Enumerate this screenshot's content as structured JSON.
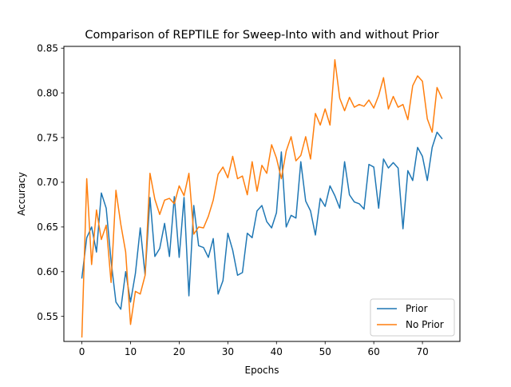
{
  "chart_data": {
    "type": "line",
    "title": "Comparison of REPTILE for Sweep-Into with and without Prior",
    "xlabel": "Epochs",
    "ylabel": "Accuracy",
    "xlim": [
      -3.7,
      77.7
    ],
    "ylim": [
      0.522,
      0.852
    ],
    "xticks": [
      0,
      10,
      20,
      30,
      40,
      50,
      60,
      70
    ],
    "xtick_labels": [
      "0",
      "10",
      "20",
      "30",
      "40",
      "50",
      "60",
      "70"
    ],
    "yticks": [
      0.55,
      0.6,
      0.65,
      0.7,
      0.75,
      0.8,
      0.85
    ],
    "ytick_labels": [
      "0.55",
      "0.60",
      "0.65",
      "0.70",
      "0.75",
      "0.80",
      "0.85"
    ],
    "grid": false,
    "legend_position": "lower-right",
    "x": [
      0,
      1,
      2,
      3,
      4,
      5,
      6,
      7,
      8,
      9,
      10,
      11,
      12,
      13,
      14,
      15,
      16,
      17,
      18,
      19,
      20,
      21,
      22,
      23,
      24,
      25,
      26,
      27,
      28,
      29,
      30,
      31,
      32,
      33,
      34,
      35,
      36,
      37,
      38,
      39,
      40,
      41,
      42,
      43,
      44,
      45,
      46,
      47,
      48,
      49,
      50,
      51,
      52,
      53,
      54,
      55,
      56,
      57,
      58,
      59,
      60,
      61,
      62,
      63,
      64,
      65,
      66,
      67,
      68,
      69,
      70,
      71,
      72,
      73,
      74
    ],
    "series": [
      {
        "name": "Prior",
        "color": "#1f77b4",
        "values": [
          0.593,
          0.638,
          0.65,
          0.622,
          0.688,
          0.671,
          0.612,
          0.566,
          0.558,
          0.6,
          0.566,
          0.598,
          0.649,
          0.596,
          0.683,
          0.617,
          0.626,
          0.654,
          0.617,
          0.684,
          0.616,
          0.683,
          0.573,
          0.674,
          0.629,
          0.627,
          0.616,
          0.637,
          0.575,
          0.59,
          0.643,
          0.624,
          0.596,
          0.599,
          0.643,
          0.638,
          0.668,
          0.674,
          0.656,
          0.649,
          0.666,
          0.734,
          0.65,
          0.663,
          0.66,
          0.723,
          0.679,
          0.668,
          0.641,
          0.682,
          0.673,
          0.696,
          0.685,
          0.671,
          0.723,
          0.686,
          0.678,
          0.676,
          0.67,
          0.72,
          0.717,
          0.671,
          0.726,
          0.716,
          0.722,
          0.716,
          0.648,
          0.713,
          0.702,
          0.739,
          0.729,
          0.702,
          0.739,
          0.756,
          0.749
        ]
      },
      {
        "name": "No Prior",
        "color": "#ff7f0e",
        "values": [
          0.527,
          0.704,
          0.608,
          0.669,
          0.636,
          0.652,
          0.588,
          0.691,
          0.653,
          0.622,
          0.541,
          0.578,
          0.575,
          0.596,
          0.71,
          0.681,
          0.664,
          0.68,
          0.682,
          0.676,
          0.696,
          0.685,
          0.71,
          0.642,
          0.65,
          0.649,
          0.662,
          0.68,
          0.709,
          0.717,
          0.705,
          0.729,
          0.704,
          0.707,
          0.686,
          0.723,
          0.69,
          0.719,
          0.71,
          0.742,
          0.727,
          0.704,
          0.735,
          0.751,
          0.724,
          0.73,
          0.751,
          0.726,
          0.777,
          0.764,
          0.782,
          0.764,
          0.837,
          0.794,
          0.78,
          0.795,
          0.784,
          0.787,
          0.785,
          0.792,
          0.783,
          0.797,
          0.817,
          0.782,
          0.796,
          0.784,
          0.787,
          0.77,
          0.808,
          0.819,
          0.813,
          0.771,
          0.756,
          0.806,
          0.794
        ]
      }
    ]
  }
}
